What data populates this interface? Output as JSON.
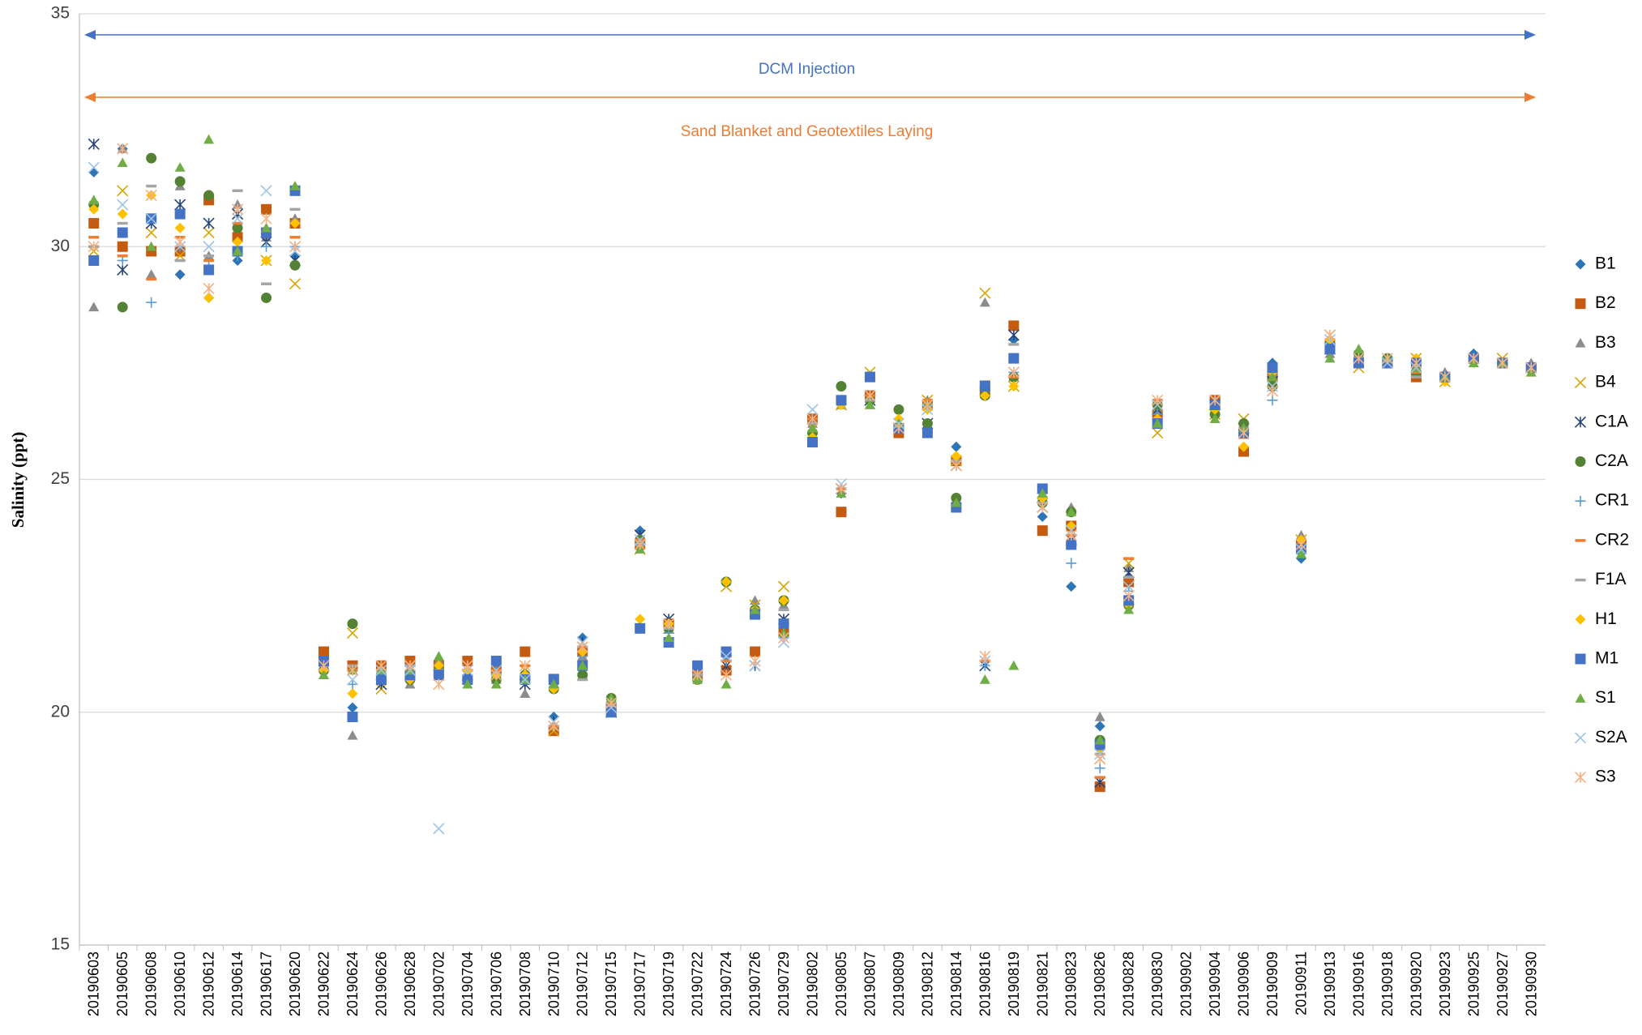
{
  "chart_data": {
    "type": "scatter",
    "y_label": "Salinity (ppt)",
    "ylim": [
      15,
      35
    ],
    "yticks": [
      15,
      20,
      25,
      30,
      35
    ],
    "grid": true,
    "legend": "right",
    "annotations": [
      {
        "text": "DCM Injection",
        "color": "#4472c4"
      },
      {
        "text": "Sand Blanket and Geotextiles Laying",
        "color": "#ed7d31"
      }
    ],
    "categories": [
      "20190603",
      "20190605",
      "20190608",
      "20190610",
      "20190612",
      "20190614",
      "20190617",
      "20190620",
      "20190622",
      "20190624",
      "20190626",
      "20190628",
      "20190702",
      "20190704",
      "20190706",
      "20190708",
      "20190710",
      "20190712",
      "20190715",
      "20190717",
      "20190719",
      "20190722",
      "20190724",
      "20190726",
      "20190729",
      "20190802",
      "20190805",
      "20190807",
      "20190809",
      "20190812",
      "20190814",
      "20190816",
      "20190819",
      "20190821",
      "20190823",
      "20190826",
      "20190828",
      "20190830",
      "20190902",
      "20190904",
      "20190906",
      "20190909",
      "20190911",
      "20190913",
      "20190916",
      "20190918",
      "20190920",
      "20190923",
      "20190925",
      "20190927",
      "20190930"
    ],
    "series": [
      {
        "name": "B1",
        "color": "#2e75b6",
        "marker": "diamond",
        "values": [
          31.6,
          32.1,
          30.6,
          29.4,
          28.9,
          29.7,
          30.3,
          29.8,
          20.9,
          20.1,
          20.7,
          20.9,
          20.9,
          20.8,
          20.8,
          20.8,
          19.9,
          21.6,
          20.0,
          23.9,
          21.8,
          21.0,
          21.2,
          22.1,
          21.9,
          26.0,
          24.7,
          26.7,
          26.1,
          26.0,
          25.7,
          27.0,
          28.0,
          24.2,
          22.7,
          19.7,
          22.9,
          26.3,
          null,
          26.6,
          26.0,
          27.5,
          23.3,
          27.9,
          27.6,
          27.5,
          27.4,
          27.2,
          27.7,
          27.5,
          27.4
        ]
      },
      {
        "name": "B2",
        "color": "#c55a11",
        "marker": "square",
        "values": [
          30.5,
          30.0,
          29.9,
          29.9,
          31.0,
          30.2,
          30.8,
          30.5,
          21.3,
          21.0,
          21.0,
          21.1,
          21.0,
          21.1,
          20.9,
          21.3,
          19.6,
          21.3,
          20.1,
          23.6,
          21.9,
          20.8,
          20.9,
          21.3,
          21.7,
          26.3,
          24.3,
          26.8,
          26.0,
          26.6,
          25.4,
          26.9,
          28.3,
          23.9,
          24.0,
          18.4,
          22.8,
          26.4,
          null,
          26.7,
          25.6,
          27.2,
          23.6,
          27.9,
          27.5,
          27.5,
          27.2,
          27.2,
          27.6,
          27.5,
          27.4
        ]
      },
      {
        "name": "B3",
        "color": "#8c8c8c",
        "marker": "triangle",
        "values": [
          28.7,
          32.1,
          29.4,
          31.3,
          29.8,
          30.9,
          30.2,
          30.6,
          20.8,
          19.5,
          20.8,
          20.6,
          21.1,
          20.7,
          20.7,
          20.4,
          19.7,
          21.2,
          20.2,
          23.7,
          21.9,
          20.9,
          21.3,
          22.4,
          22.3,
          26.2,
          26.6,
          26.6,
          26.2,
          26.7,
          24.5,
          28.8,
          27.2,
          24.6,
          24.4,
          19.9,
          23.1,
          26.5,
          null,
          26.7,
          26.2,
          27.3,
          23.8,
          27.7,
          27.7,
          27.6,
          27.3,
          27.3,
          27.6,
          27.5,
          27.5
        ]
      },
      {
        "name": "B4",
        "color": "#d9a300",
        "marker": "x",
        "values": [
          29.9,
          31.2,
          30.3,
          29.8,
          30.3,
          30.7,
          29.7,
          29.2,
          21.0,
          21.7,
          20.5,
          21.0,
          20.8,
          21.0,
          20.8,
          20.9,
          19.6,
          21.4,
          20.1,
          23.5,
          21.8,
          20.9,
          22.7,
          22.3,
          22.7,
          26.1,
          26.6,
          27.3,
          26.2,
          26.7,
          25.4,
          29.0,
          27.0,
          24.4,
          23.9,
          19.0,
          23.2,
          26.0,
          null,
          26.4,
          26.3,
          27.2,
          23.7,
          28.1,
          27.4,
          27.5,
          27.6,
          27.1,
          27.6,
          27.6,
          27.4
        ]
      },
      {
        "name": "C1A",
        "color": "#264478",
        "marker": "asterisk",
        "values": [
          32.2,
          29.5,
          30.5,
          30.9,
          30.5,
          30.7,
          30.1,
          29.7,
          21.0,
          20.9,
          20.6,
          20.9,
          20.8,
          20.8,
          20.8,
          20.6,
          19.8,
          21.5,
          20.0,
          23.8,
          22.0,
          20.8,
          21.0,
          21.0,
          22.0,
          26.3,
          24.8,
          26.7,
          26.1,
          26.2,
          25.3,
          21.0,
          28.1,
          24.4,
          23.7,
          18.5,
          23.0,
          26.5,
          null,
          26.6,
          26.1,
          27.1,
          23.6,
          27.8,
          27.6,
          27.5,
          27.4,
          27.2,
          27.6,
          27.5,
          27.4
        ]
      },
      {
        "name": "C2A",
        "color": "#548235",
        "marker": "circle",
        "values": [
          30.9,
          28.7,
          31.9,
          31.4,
          31.1,
          30.4,
          28.9,
          29.6,
          20.9,
          21.9,
          20.8,
          20.7,
          20.9,
          20.7,
          20.7,
          20.8,
          20.5,
          20.8,
          20.3,
          23.7,
          21.8,
          20.7,
          22.8,
          22.2,
          22.4,
          26.0,
          27.0,
          26.7,
          26.5,
          26.2,
          24.6,
          26.8,
          27.2,
          24.5,
          24.3,
          19.4,
          22.3,
          26.6,
          null,
          26.4,
          26.2,
          27.0,
          23.5,
          27.9,
          27.7,
          27.6,
          27.3,
          27.2,
          27.6,
          27.5,
          27.4
        ]
      },
      {
        "name": "CR1",
        "color": "#5b9bd5",
        "marker": "plus",
        "values": [
          29.7,
          29.7,
          28.8,
          30.0,
          29.7,
          29.8,
          30.0,
          30.0,
          20.9,
          20.6,
          20.8,
          20.8,
          20.8,
          20.8,
          20.9,
          20.7,
          20.7,
          21.2,
          20.1,
          23.6,
          21.7,
          20.8,
          21.1,
          22.2,
          21.6,
          26.2,
          24.8,
          26.7,
          26.1,
          26.6,
          24.4,
          21.0,
          27.3,
          24.7,
          23.2,
          18.8,
          22.6,
          26.4,
          null,
          26.5,
          26.0,
          26.7,
          23.5,
          27.8,
          27.5,
          27.5,
          27.4,
          27.2,
          27.6,
          27.5,
          27.4
        ]
      },
      {
        "name": "CR2",
        "color": "#ed7d31",
        "marker": "dash",
        "values": [
          30.2,
          29.8,
          29.3,
          30.2,
          29.7,
          30.5,
          30.3,
          30.2,
          21.1,
          20.9,
          20.9,
          21.0,
          20.8,
          20.9,
          20.9,
          21.0,
          19.7,
          21.4,
          20.2,
          23.7,
          21.9,
          20.9,
          21.1,
          22.2,
          21.9,
          26.3,
          24.8,
          26.8,
          26.1,
          26.7,
          25.4,
          21.1,
          27.2,
          24.6,
          23.8,
          18.6,
          23.3,
          26.7,
          null,
          26.6,
          25.9,
          27.3,
          23.6,
          28.0,
          27.6,
          27.5,
          27.3,
          27.2,
          27.6,
          27.5,
          27.4
        ]
      },
      {
        "name": "F1A",
        "color": "#a5a5a5",
        "marker": "dash",
        "values": [
          30.0,
          30.5,
          31.3,
          29.7,
          29.8,
          31.2,
          29.2,
          30.8,
          21.0,
          21.0,
          20.9,
          21.0,
          20.9,
          20.9,
          20.8,
          20.8,
          20.8,
          20.7,
          20.1,
          23.6,
          21.8,
          20.8,
          21.2,
          22.1,
          22.2,
          26.2,
          26.7,
          26.7,
          26.1,
          26.5,
          25.4,
          27.1,
          27.9,
          24.5,
          23.6,
          19.1,
          22.9,
          26.3,
          null,
          26.6,
          26.1,
          27.3,
          23.5,
          27.8,
          27.6,
          27.5,
          27.2,
          27.2,
          27.6,
          27.5,
          27.4
        ]
      },
      {
        "name": "H1",
        "color": "#ffc000",
        "marker": "diamond",
        "values": [
          30.8,
          30.7,
          31.1,
          30.4,
          28.9,
          30.1,
          29.7,
          30.5,
          20.9,
          20.4,
          20.7,
          20.7,
          21.0,
          20.9,
          20.8,
          20.8,
          20.5,
          21.3,
          20.0,
          22.0,
          21.9,
          20.7,
          22.8,
          22.2,
          22.4,
          25.9,
          26.6,
          27.2,
          26.3,
          26.5,
          25.5,
          26.8,
          27.0,
          24.6,
          24.0,
          19.2,
          22.3,
          26.3,
          null,
          26.5,
          25.7,
          27.3,
          23.7,
          28.0,
          27.5,
          27.5,
          27.6,
          27.1,
          27.5,
          27.5,
          27.4
        ]
      },
      {
        "name": "M1",
        "color": "#4472c4",
        "marker": "square",
        "values": [
          29.7,
          30.3,
          30.6,
          30.7,
          29.5,
          29.9,
          30.3,
          31.2,
          21.1,
          19.9,
          20.7,
          20.8,
          20.8,
          20.7,
          21.1,
          20.7,
          20.7,
          21.0,
          20.0,
          21.8,
          21.5,
          21.0,
          21.3,
          22.1,
          21.9,
          25.8,
          26.7,
          27.2,
          26.1,
          26.0,
          24.4,
          27.0,
          27.6,
          24.8,
          23.6,
          19.3,
          22.4,
          26.2,
          null,
          26.6,
          26.0,
          27.4,
          23.5,
          27.8,
          27.5,
          27.5,
          27.5,
          27.2,
          27.6,
          27.5,
          27.4
        ]
      },
      {
        "name": "S1",
        "color": "#70ad47",
        "marker": "triangle",
        "values": [
          31.0,
          31.8,
          30.0,
          31.7,
          32.3,
          29.9,
          30.4,
          31.3,
          20.8,
          20.9,
          20.9,
          20.9,
          21.2,
          20.6,
          20.6,
          20.7,
          20.6,
          21.0,
          20.3,
          23.5,
          21.6,
          20.7,
          20.6,
          22.2,
          21.7,
          26.1,
          24.7,
          26.6,
          26.2,
          26.6,
          24.5,
          20.7,
          21.0,
          24.7,
          24.3,
          19.4,
          22.2,
          26.2,
          null,
          26.3,
          26.1,
          27.2,
          23.4,
          27.6,
          27.8,
          27.6,
          27.4,
          27.2,
          27.5,
          27.5,
          27.3
        ]
      },
      {
        "name": "S2A",
        "color": "#9dc3e6",
        "marker": "x",
        "values": [
          31.7,
          30.9,
          30.6,
          30.0,
          30.0,
          30.6,
          31.2,
          29.9,
          21.0,
          20.7,
          20.9,
          20.9,
          17.5,
          20.9,
          20.9,
          20.7,
          19.8,
          21.5,
          20.1,
          23.7,
          21.9,
          20.8,
          21.2,
          21.0,
          21.5,
          26.5,
          24.9,
          26.8,
          26.2,
          26.5,
          25.3,
          21.1,
          27.3,
          24.4,
          23.9,
          19.1,
          22.7,
          26.6,
          null,
          26.7,
          26.0,
          27.0,
          23.5,
          28.0,
          27.6,
          27.5,
          27.4,
          27.2,
          27.6,
          27.5,
          27.4
        ]
      },
      {
        "name": "S3",
        "color": "#f4b183",
        "marker": "asterisk",
        "values": [
          30.0,
          32.1,
          31.1,
          30.1,
          29.1,
          30.8,
          30.6,
          30.0,
          21.0,
          20.9,
          21.0,
          21.0,
          20.6,
          21.0,
          20.8,
          21.0,
          19.7,
          21.4,
          20.2,
          23.6,
          21.9,
          20.8,
          20.8,
          21.1,
          21.6,
          26.3,
          24.8,
          26.8,
          26.1,
          26.6,
          25.3,
          21.2,
          27.3,
          24.4,
          23.8,
          19.0,
          22.5,
          26.7,
          null,
          26.7,
          26.0,
          26.9,
          23.6,
          28.1,
          27.6,
          27.6,
          27.5,
          27.2,
          27.6,
          27.5,
          27.4
        ]
      }
    ]
  }
}
